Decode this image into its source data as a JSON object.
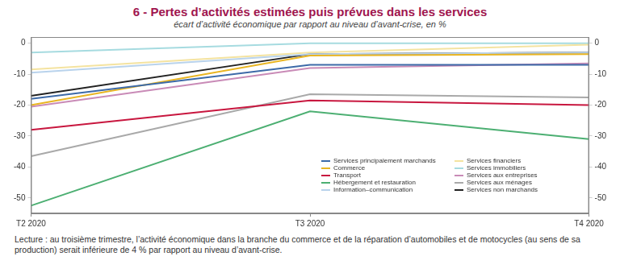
{
  "chart_data": {
    "type": "line",
    "title": "6 - Pertes d’activités estimées puis prévues dans les services",
    "subtitle": "écart d’activité économique par rapport au niveau d’avant-crise, en %",
    "note": "Lecture : au troisième trimestre, l’activité économique dans la branche du commerce et de la réparation d’automobiles et de motocycles (au sens de sa production) serait inférieure de 4 % par rapport au niveau d’avant-crise.",
    "categories": [
      "T2 2020",
      "T3 2020",
      "T4 2020"
    ],
    "series": [
      {
        "name": "Services principalement marchands",
        "color": "#3d6aa8",
        "values": [
          -18,
          -7,
          -7
        ]
      },
      {
        "name": "Commerce",
        "color": "#e9b523",
        "values": [
          -20,
          -4,
          -3.5
        ]
      },
      {
        "name": "Transport",
        "color": "#c8173f",
        "values": [
          -28,
          -18.5,
          -20
        ]
      },
      {
        "name": "Hébergement et restauration",
        "color": "#4caf72",
        "values": [
          -52.5,
          -22,
          -31
        ]
      },
      {
        "name": "Information–communication",
        "color": "#b9d3ec",
        "values": [
          -9.5,
          -3.5,
          -3
        ]
      },
      {
        "name": "Services financiers",
        "color": "#f4e3a0",
        "values": [
          -8.5,
          -3,
          -0.5
        ]
      },
      {
        "name": "Services immobiliers",
        "color": "#a6dbe0",
        "values": [
          -3,
          0,
          0
        ]
      },
      {
        "name": "Services aux entreprises",
        "color": "#c98bb7",
        "values": [
          -20.5,
          -8,
          -6.5
        ]
      },
      {
        "name": "Services aux ménages",
        "color": "#a9a9a9",
        "values": [
          -36.5,
          -16.5,
          -17.5
        ]
      },
      {
        "name": "Services non marchands",
        "color": "#222222",
        "values": [
          -17,
          -3.5,
          -3
        ]
      }
    ],
    "ylim": [
      -55,
      2
    ],
    "yticks": [
      -50,
      -40,
      -30,
      -20,
      -10,
      0
    ],
    "y2lim": [
      -55,
      2
    ],
    "y2ticks": [
      -50,
      -40,
      -30,
      -20,
      -10,
      0
    ],
    "grid": false,
    "legend": "lower right",
    "line_style": "solid"
  }
}
